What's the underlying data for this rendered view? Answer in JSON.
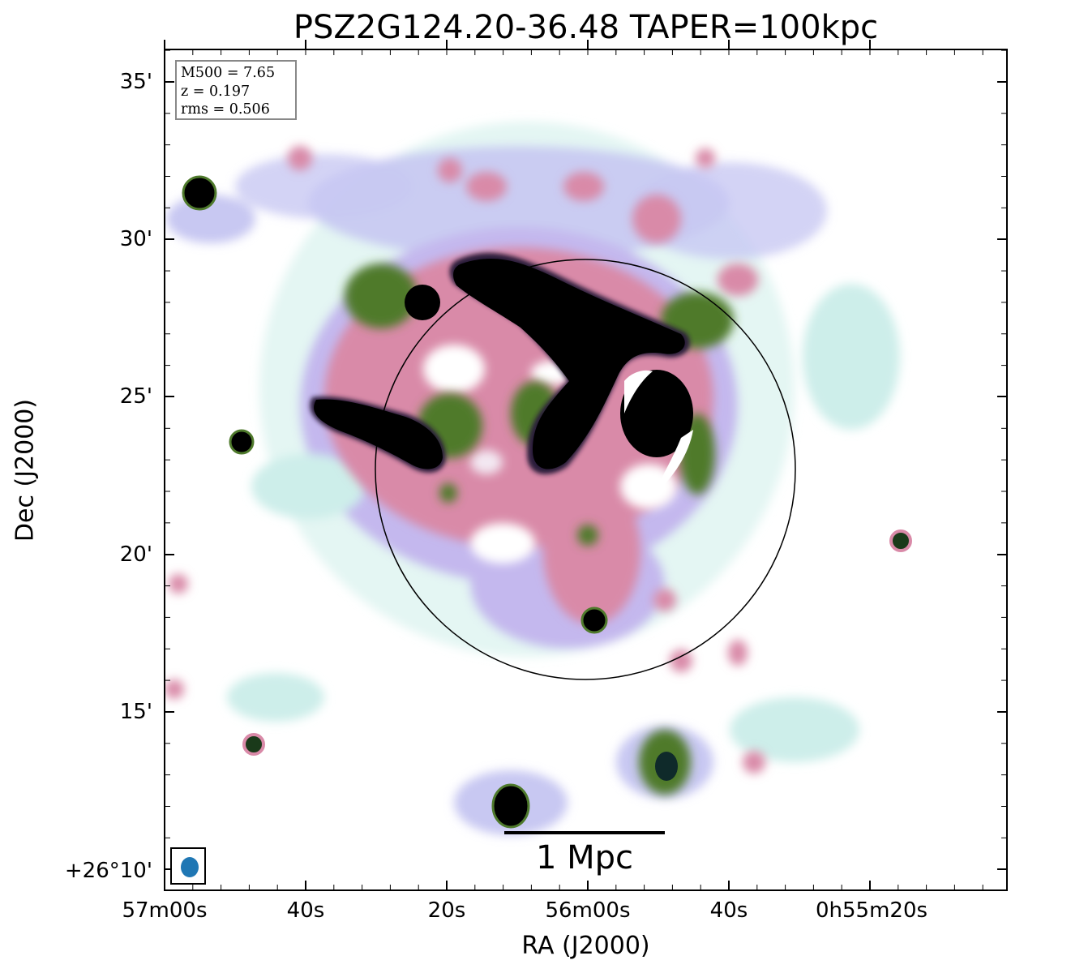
{
  "title": "PSZ2G124.20-36.48 TAPER=100kpc",
  "axes": {
    "xlabel": "RA (J2000)",
    "ylabel": "Dec (J2000)",
    "x_ticks": [
      "57m00s",
      "40s",
      "20s",
      "56m00s",
      "40s",
      "0h55m20s"
    ],
    "y_ticks": [
      "35'",
      "30'",
      "25'",
      "20'",
      "15'",
      "+26°10'"
    ]
  },
  "info_box": {
    "line1": "M500 = 7.65",
    "line2": "z = 0.197",
    "line3": "rms = 0.506"
  },
  "scale_bar": {
    "label": "1 Mpc"
  },
  "colors": {
    "beam": "#1f77b4",
    "light_cyan": "#c8ece8",
    "lavender": "#b8b8ee",
    "pink": "#d98aa8",
    "green": "#4f7a2c",
    "black": "#000000"
  },
  "legend": {
    "beam_icon": "beam-ellipse-icon"
  }
}
